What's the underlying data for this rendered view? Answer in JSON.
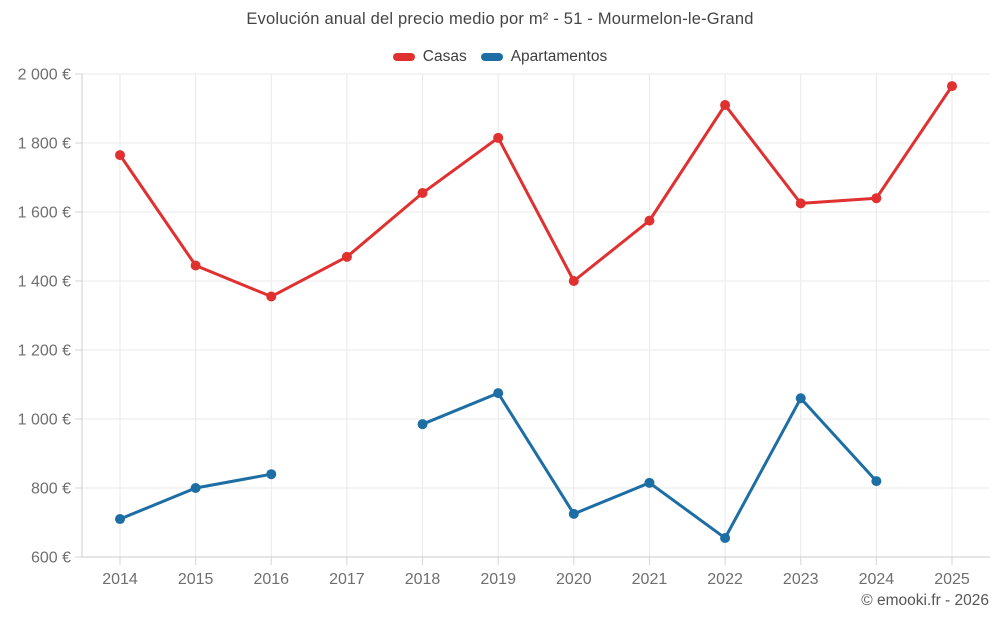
{
  "page": {
    "title": "Evolución anual del precio medio por m² - 51 - Mourmelon-le-Grand",
    "credit": "© emooki.fr - 2026"
  },
  "legend": [
    {
      "label": "Casas",
      "color": "#e03030"
    },
    {
      "label": "Apartamentos",
      "color": "#1c6ea4"
    }
  ],
  "style": {
    "grid_color": "#e9e9e9",
    "axis_color": "#cccccc",
    "tick_color": "#d6d6d6",
    "tick_label_color": "#6f6f6f"
  },
  "chart_data": {
    "type": "line",
    "title": "Evolución anual del precio medio por m² - 51 - Mourmelon-le-Grand",
    "x": [
      2014,
      2015,
      2016,
      2017,
      2018,
      2019,
      2020,
      2021,
      2022,
      2023,
      2024,
      2025
    ],
    "x_tick_labels": [
      "2014",
      "2015",
      "2016",
      "2017",
      "2018",
      "2019",
      "2020",
      "2021",
      "2022",
      "2023",
      "2024",
      "2025"
    ],
    "series": [
      {
        "name": "Casas",
        "color": "#e03030",
        "values": [
          1765,
          1445,
          1355,
          1470,
          1655,
          1815,
          1400,
          1575,
          1910,
          1625,
          1640,
          1965
        ]
      },
      {
        "name": "Apartamentos",
        "color": "#1c6ea4",
        "values": [
          710,
          800,
          840,
          null,
          985,
          1075,
          725,
          815,
          655,
          1060,
          820,
          null
        ]
      }
    ],
    "ylim": [
      600,
      2000
    ],
    "yticks": [
      600,
      800,
      1000,
      1200,
      1400,
      1600,
      1800,
      2000
    ],
    "ytick_labels": [
      "600 €",
      "800 €",
      "1 000 €",
      "1 200 €",
      "1 400 €",
      "1 600 €",
      "1 800 €",
      "2 000 €"
    ],
    "xlabel": "",
    "ylabel": "",
    "grid": true,
    "legend_position": "top"
  }
}
